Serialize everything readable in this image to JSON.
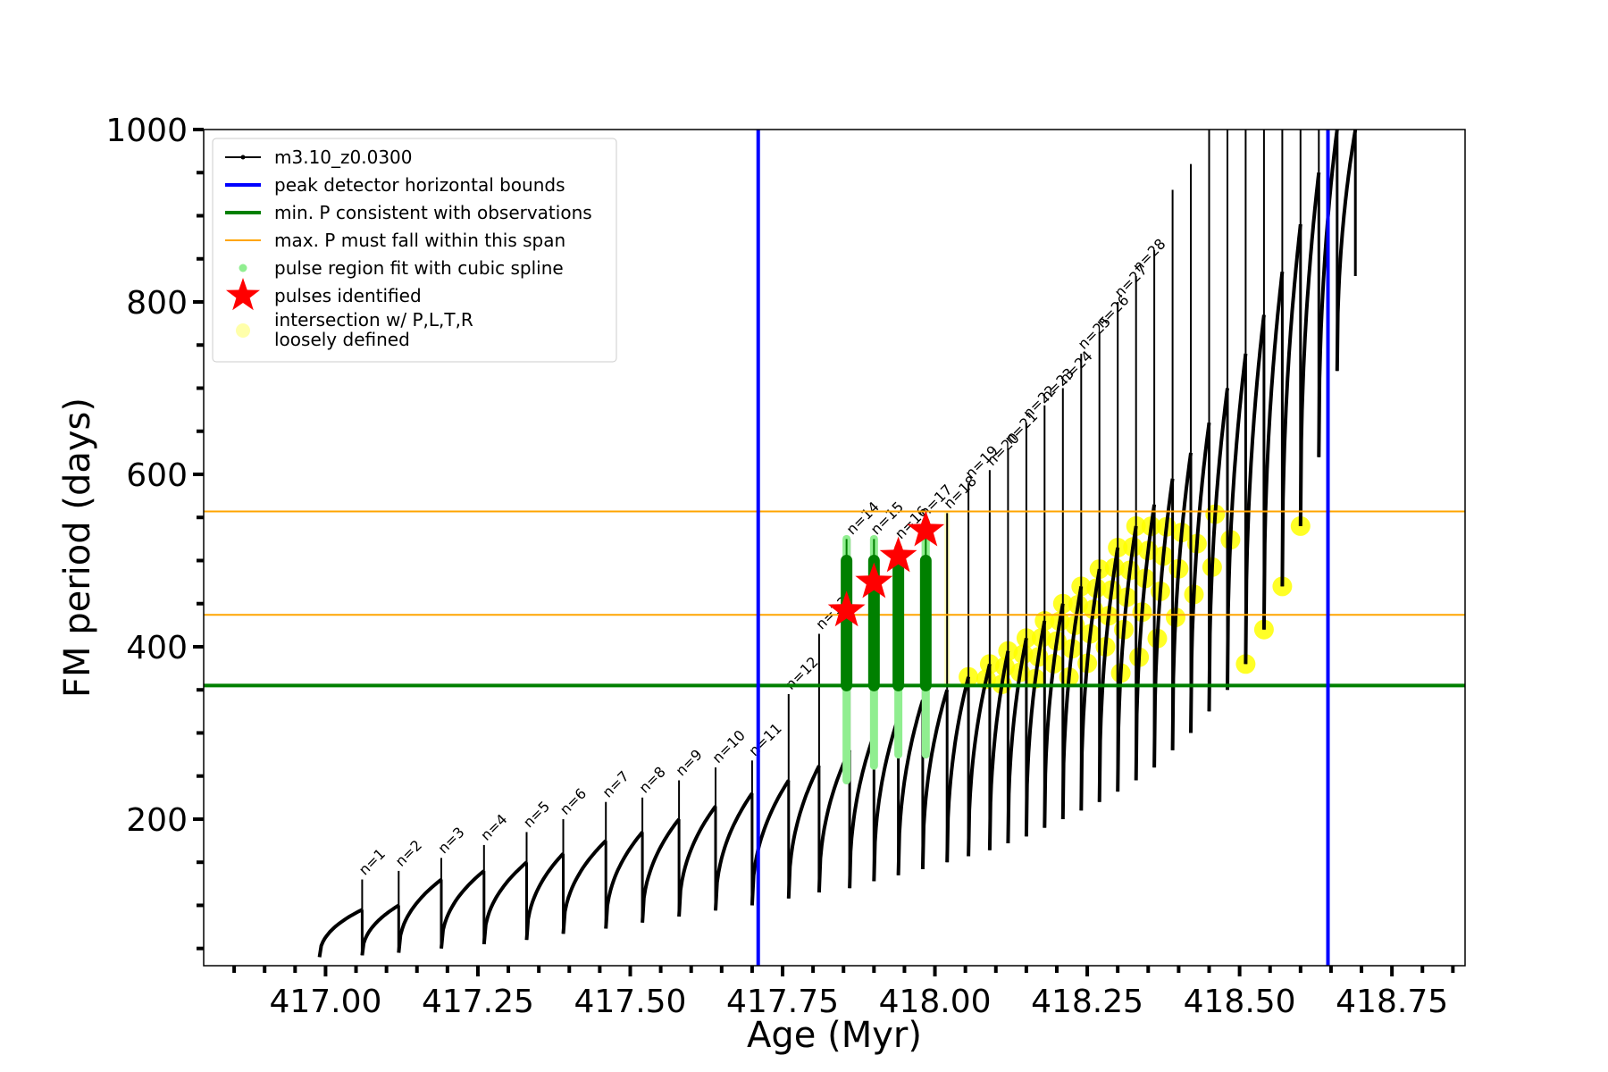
{
  "chart_data": {
    "type": "line",
    "xlabel": "Age (Myr)",
    "ylabel": "FM period (days)",
    "xlim": [
      416.8,
      418.87
    ],
    "ylim": [
      30,
      1000
    ],
    "x_ticks": [
      417.0,
      417.25,
      417.5,
      417.75,
      418.0,
      418.25,
      418.5,
      418.75
    ],
    "x_tick_labels": [
      "417.00",
      "417.25",
      "417.50",
      "417.75",
      "418.00",
      "418.25",
      "418.50",
      "418.75"
    ],
    "y_ticks": [
      200,
      400,
      600,
      800,
      1000
    ],
    "y_tick_labels": [
      "200",
      "400",
      "600",
      "800",
      "1000"
    ],
    "legend_position": "upper-left",
    "legend": [
      {
        "label": "m3.10_z0.0300",
        "kind": "line-dot",
        "color": "#000000"
      },
      {
        "label": "peak detector horizontal bounds",
        "kind": "line",
        "color": "#0000ff"
      },
      {
        "label": "min. P consistent with observations",
        "kind": "line",
        "color": "#008000"
      },
      {
        "label": "max. P must fall within this span",
        "kind": "thin-line",
        "color": "#ffa500"
      },
      {
        "label": "pulse region fit with cubic spline",
        "kind": "dot",
        "color": "#90ee90"
      },
      {
        "label": "pulses identified",
        "kind": "star",
        "color": "#ff0000"
      },
      {
        "label": "intersection w/ P,L,T,R",
        "label2": "loosely defined",
        "kind": "circle",
        "color": "#ffffaa"
      }
    ],
    "track_name": "m3.10_z0.0300",
    "pulse_ages": [
      416.99,
      417.06,
      417.12,
      417.19,
      417.26,
      417.33,
      417.39,
      417.46,
      417.52,
      417.58,
      417.64,
      417.7,
      417.76,
      417.81,
      417.86,
      417.9,
      417.94,
      417.98,
      418.02,
      418.055,
      418.09,
      418.12,
      418.15,
      418.18,
      418.21,
      418.24,
      418.27,
      418.3,
      418.33,
      418.36,
      418.39,
      418.42,
      418.45,
      418.48,
      418.51,
      418.54,
      418.57,
      418.6,
      418.63,
      418.66,
      418.69
    ],
    "cycle_min_periods": [
      40,
      42,
      45,
      50,
      55,
      60,
      67,
      73,
      80,
      87,
      94,
      100,
      108,
      115,
      120,
      128,
      135,
      142,
      150,
      157,
      164,
      172,
      180,
      190,
      200,
      210,
      220,
      232,
      245,
      260,
      280,
      300,
      325,
      350,
      380,
      420,
      470,
      540,
      620,
      720,
      830
    ],
    "cycle_max_periods": [
      95,
      100,
      130,
      140,
      150,
      160,
      175,
      185,
      200,
      215,
      230,
      245,
      262,
      280,
      298,
      318,
      338,
      350,
      365,
      380,
      395,
      410,
      430,
      450,
      470,
      490,
      515,
      540,
      565,
      595,
      625,
      660,
      700,
      740,
      785,
      835,
      890,
      950,
      1000,
      1000,
      1000
    ],
    "spike_peaks": [
      null,
      130,
      140,
      155,
      170,
      185,
      200,
      220,
      225,
      245,
      260,
      268,
      345,
      415,
      525,
      525,
      520,
      545,
      555,
      590,
      605,
      630,
      660,
      680,
      700,
      740,
      765,
      800,
      830,
      860,
      930,
      960,
      1000,
      1000,
      1000,
      1000,
      1000,
      1000,
      1000,
      1000,
      1000
    ],
    "pulse_labels": [
      "n=1",
      "n=2",
      "n=3",
      "n=4",
      "n=5",
      "n=6",
      "n=7",
      "n=8",
      "n=9",
      "n=10",
      "n=11",
      "n=12",
      "n=13",
      "n=14",
      "n=15",
      "n=16",
      "n=17",
      "n=18",
      "n=19",
      "n=20",
      "n=21",
      "n=22",
      "n=23",
      "n=24",
      "n=25",
      "n=26",
      "n=27",
      "n=28"
    ],
    "peak_detector_bounds": [
      417.71,
      418.645
    ],
    "min_period_observed": 355,
    "max_period_span": [
      437,
      557
    ],
    "pulses_identified": [
      {
        "age": 417.855,
        "period": 442
      },
      {
        "age": 417.9,
        "period": 475
      },
      {
        "age": 417.94,
        "period": 505
      },
      {
        "age": 417.985,
        "period": 535
      }
    ],
    "spline_fit_regions": [
      {
        "age": 417.855,
        "low": 245,
        "high": 525
      },
      {
        "age": 417.9,
        "low": 262,
        "high": 525
      },
      {
        "age": 417.94,
        "low": 275,
        "high": 515
      },
      {
        "age": 417.985,
        "low": 275,
        "high": 545
      }
    ],
    "intersection_band_lower": 355
  }
}
